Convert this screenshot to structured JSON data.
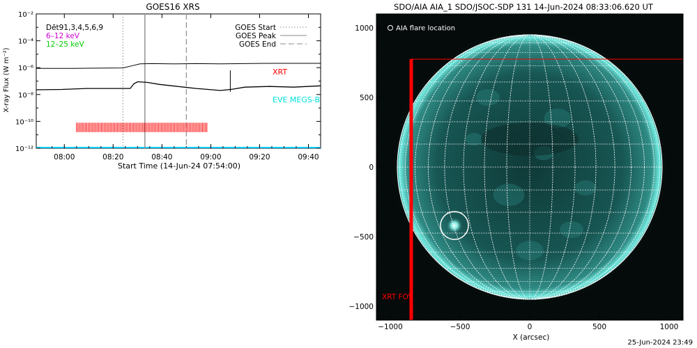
{
  "footer_timestamp": "25-Jun-2024 23:49",
  "chart_data": [
    {
      "type": "line",
      "title": "GOES16 XRS",
      "xlabel": "Start Time (14-Jun-24 07:54:00)",
      "ylabel": "X-ray Flux (W m⁻²)",
      "y_scale": "log",
      "ylim": [
        1e-12,
        0.01
      ],
      "xlim_minutes": [
        -5.5,
        111
      ],
      "x_tick_labels": [
        {
          "t": 6,
          "label": "08:00"
        },
        {
          "t": 26,
          "label": "08:20"
        },
        {
          "t": 46,
          "label": "08:40"
        },
        {
          "t": 66,
          "label": "09:00"
        },
        {
          "t": 86,
          "label": "09:20"
        },
        {
          "t": 106,
          "label": "09:40"
        }
      ],
      "y_tick_labels": [
        {
          "exp": -2,
          "label": "10⁻²"
        },
        {
          "exp": -4,
          "label": "10⁻⁴"
        },
        {
          "exp": -6,
          "label": "10⁻⁶"
        },
        {
          "exp": -8,
          "label": "10⁻⁸"
        },
        {
          "exp": -10,
          "label": "10⁻¹⁰"
        },
        {
          "exp": -12,
          "label": "10⁻¹²"
        }
      ],
      "legend_left": [
        {
          "text": "Dēt91,3,4,5,6,9",
          "color": "#000000"
        },
        {
          "text": "6–12 keV",
          "color": "#cc00cc"
        },
        {
          "text": "12–25 keV",
          "color": "#00cc00"
        }
      ],
      "legend_right": [
        {
          "text": "GOES Start",
          "style": "dotted"
        },
        {
          "text": "GOES Peak",
          "style": "solid"
        },
        {
          "text": "GOES End",
          "style": "dashed"
        }
      ],
      "labels": {
        "xrt": "XRT",
        "eve": "EVE MEGS-B"
      },
      "colors": {
        "xrt": "#ff0000",
        "eve": "#00dddd",
        "baseline": "#00ccff"
      },
      "goes_start_t": 30,
      "goes_peak_t": 39,
      "goes_end_t": 56,
      "vertical_marker": {
        "t": 74,
        "log_top": -6.2,
        "log_bottom": -7.8
      },
      "series": [
        {
          "name": "GOES long channel",
          "x": [
            -5.5,
            10,
            30,
            34,
            37,
            42,
            50,
            60,
            70,
            80,
            90,
            100,
            111
          ],
          "log_y": [
            -6.05,
            -6.05,
            -6.02,
            -5.85,
            -5.72,
            -5.7,
            -5.72,
            -5.7,
            -5.72,
            -5.7,
            -5.68,
            -5.68,
            -5.68
          ]
        },
        {
          "name": "GOES short channel",
          "x": [
            -5.5,
            5,
            15,
            25,
            33,
            34.5,
            36,
            40,
            45,
            55,
            60,
            65,
            70,
            75,
            80,
            90,
            100,
            111
          ],
          "log_y": [
            -7.65,
            -7.62,
            -7.55,
            -7.55,
            -7.55,
            -7.2,
            -7.05,
            -7.1,
            -7.25,
            -7.45,
            -7.55,
            -7.62,
            -7.7,
            -7.6,
            -7.45,
            -7.4,
            -7.45,
            -7.35
          ]
        }
      ],
      "xrt_obs_range": [
        11,
        65
      ]
    },
    {
      "type": "image",
      "title": "SDO/AIA AIA_1 SDO/JSOC-SDP 131 14-Jun-2024 08:33:06.620 UT",
      "xlabel": "X (arcsec)",
      "xlim": [
        -1100,
        1100
      ],
      "ylim": [
        -1100,
        1100
      ],
      "x_ticks": [
        -1000,
        -500,
        0,
        500,
        1000
      ],
      "y_ticks": [
        -1000,
        -500,
        0,
        500,
        1000
      ],
      "flare_legend": "AIA flare location",
      "fov_label": "XRT FOV",
      "solar_radius_arcsec": 950,
      "flare_location": [
        -540,
        -420
      ],
      "flare_circle_radius_arcsec": 100,
      "xrt_fov": {
        "x_min": -850,
        "x_max": 1130,
        "y_min": -1130,
        "y_max": 775
      },
      "colors": {
        "disk": "#1a5f5c",
        "limb": "#6fe8de",
        "grid": "#ffffff",
        "fov": "#ff0000"
      }
    }
  ]
}
